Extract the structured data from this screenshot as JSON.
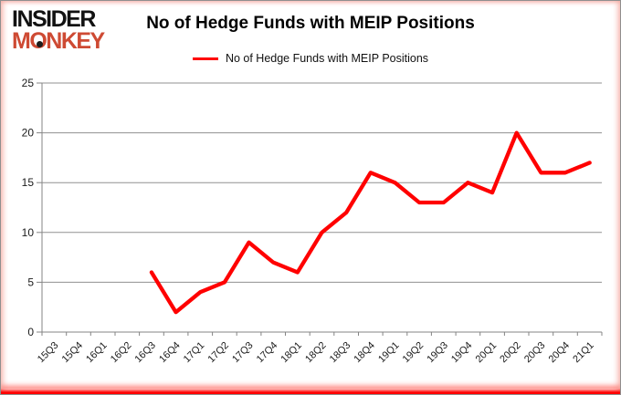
{
  "logo": {
    "line1": "INSIDER",
    "line2": "MONKEY",
    "brand_red": "#ce4a33"
  },
  "header": {
    "title": "No of Hedge Funds with MEIP Positions"
  },
  "legend": {
    "label": "No of Hedge Funds with MEIP Positions",
    "swatch_color": "#ff0000"
  },
  "chart_data": {
    "type": "line",
    "title": "No of Hedge Funds with MEIP Positions",
    "categories": [
      "15Q3",
      "15Q4",
      "16Q1",
      "16Q2",
      "16Q3",
      "16Q4",
      "17Q1",
      "17Q2",
      "17Q3",
      "17Q4",
      "18Q1",
      "18Q2",
      "18Q3",
      "18Q4",
      "19Q1",
      "19Q2",
      "19Q3",
      "19Q4",
      "20Q1",
      "20Q2",
      "20Q3",
      "20Q4",
      "21Q1"
    ],
    "series": [
      {
        "name": "No of Hedge Funds with MEIP Positions",
        "color": "#ff0000",
        "values": [
          null,
          null,
          null,
          null,
          6,
          2,
          4,
          5,
          9,
          7,
          6,
          10,
          12,
          16,
          15,
          13,
          13,
          15,
          14,
          20,
          16,
          16,
          17
        ]
      }
    ],
    "xlabel": "",
    "ylabel": "",
    "ylim": [
      0,
      25
    ],
    "yticks": [
      0,
      5,
      10,
      15,
      20,
      25
    ],
    "grid": true,
    "legend_position": "top",
    "x_label_rotation_deg": 45
  },
  "colors": {
    "line": "#ff0000",
    "gridline": "#919191",
    "axis": "#848484",
    "tick_label": "#1a1a1a",
    "frame_border": "#8f8f8f",
    "bottom_glow": "#ff0000"
  }
}
